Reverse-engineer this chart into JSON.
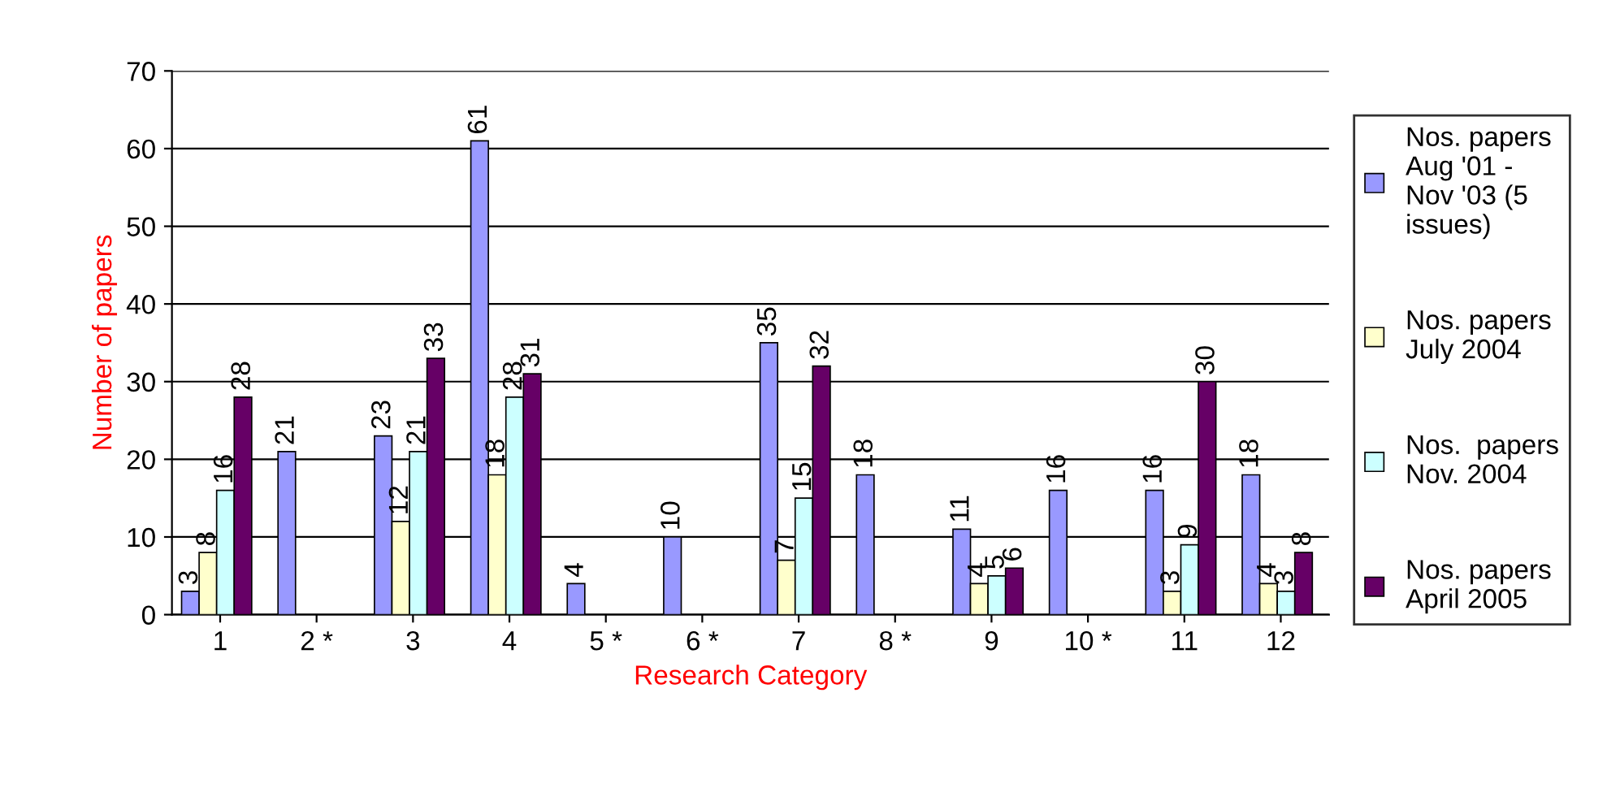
{
  "chart_data": {
    "type": "bar",
    "xlabel": "Research Category",
    "ylabel": "Number of papers",
    "categories": [
      "1",
      "2 *",
      "3",
      "4",
      "5 *",
      "6 *",
      "7",
      "8 *",
      "9",
      "10 *",
      "11",
      "12"
    ],
    "series": [
      {
        "name": "Nos. papers Aug '01 - Nov '03 (5 issues)",
        "color": "#9999ff",
        "values": [
          3,
          21,
          23,
          61,
          4,
          10,
          35,
          18,
          11,
          16,
          16,
          18
        ]
      },
      {
        "name": "Nos. papers July 2004",
        "color": "#ffffcc",
        "values": [
          8,
          null,
          12,
          18,
          null,
          null,
          7,
          null,
          4,
          null,
          3,
          4
        ]
      },
      {
        "name": "Nos.  papers Nov. 2004",
        "color": "#ccffff",
        "values": [
          16,
          null,
          21,
          28,
          null,
          null,
          15,
          null,
          5,
          null,
          9,
          3
        ]
      },
      {
        "name": "Nos. papers April 2005",
        "color": "#660066",
        "values": [
          28,
          null,
          33,
          31,
          null,
          null,
          32,
          null,
          6,
          null,
          30,
          8
        ]
      }
    ],
    "ylim": [
      0,
      70
    ],
    "yticks": [
      0,
      10,
      20,
      30,
      40,
      50,
      60,
      70
    ],
    "grid": "y",
    "legend": "right",
    "data_labels": true
  }
}
